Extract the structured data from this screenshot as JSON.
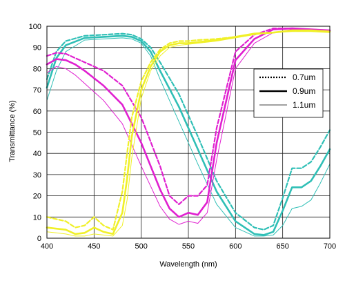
{
  "chart_data": {
    "type": "line",
    "title": "",
    "xlabel": "Wavelength (nm)",
    "ylabel": "Transmittance (%)",
    "xlim": [
      400,
      700
    ],
    "ylim": [
      0,
      100
    ],
    "xticks": [
      400,
      450,
      500,
      550,
      600,
      650,
      700
    ],
    "yticks": [
      0,
      10,
      20,
      30,
      40,
      50,
      60,
      70,
      80,
      90,
      100
    ],
    "grid": true,
    "legend_position": "right",
    "legend": [
      {
        "label": "0.7um",
        "dash": "dotted"
      },
      {
        "label": "0.9um",
        "dash": "solid-thick"
      },
      {
        "label": "1.1um",
        "dash": "solid-thin"
      }
    ],
    "colors": {
      "cyan": "#2fbfb6",
      "magenta": "#e020d0",
      "yellow": "#f0f028"
    },
    "series": [
      {
        "color": "cyan",
        "thickness": "0.7um",
        "x": [
          400,
          410,
          420,
          440,
          460,
          480,
          490,
          500,
          510,
          520,
          540,
          560,
          580,
          600,
          620,
          630,
          640,
          650,
          660,
          670,
          680,
          690,
          700
        ],
        "y": [
          75,
          88,
          93,
          95.5,
          96,
          96.5,
          96,
          94,
          90,
          83,
          68,
          48,
          27,
          12,
          5,
          4,
          6,
          19,
          33,
          33,
          36,
          43,
          51
        ]
      },
      {
        "color": "cyan",
        "thickness": "0.9um",
        "x": [
          400,
          410,
          420,
          440,
          460,
          480,
          490,
          500,
          510,
          520,
          540,
          560,
          580,
          600,
          620,
          630,
          640,
          650,
          660,
          670,
          680,
          690,
          700
        ],
        "y": [
          71,
          85,
          91,
          94.5,
          95,
          95.5,
          95,
          93,
          88,
          79,
          62,
          42,
          22,
          8,
          2,
          1.5,
          3,
          13,
          24,
          24,
          27,
          34,
          42
        ]
      },
      {
        "color": "cyan",
        "thickness": "1.1um",
        "x": [
          400,
          410,
          420,
          440,
          460,
          480,
          490,
          500,
          510,
          520,
          540,
          560,
          580,
          600,
          620,
          630,
          640,
          650,
          660,
          670,
          680,
          690,
          700
        ],
        "y": [
          65,
          79,
          88,
          93.5,
          94,
          94.5,
          94,
          92,
          86,
          75,
          55,
          35,
          16,
          5,
          1,
          1,
          1.5,
          6,
          14,
          15,
          18,
          26,
          35
        ]
      },
      {
        "color": "magenta",
        "thickness": "0.7um",
        "x": [
          400,
          410,
          420,
          430,
          440,
          460,
          480,
          500,
          520,
          530,
          540,
          550,
          560,
          570,
          580,
          600,
          620,
          640,
          660,
          680,
          700
        ],
        "y": [
          86,
          87.5,
          87,
          85,
          83,
          79,
          72,
          57,
          34,
          20,
          16,
          20,
          20,
          25,
          52,
          88,
          96,
          99,
          99,
          98.5,
          98
        ]
      },
      {
        "color": "magenta",
        "thickness": "0.9um",
        "x": [
          400,
          410,
          420,
          430,
          440,
          460,
          480,
          500,
          520,
          530,
          540,
          550,
          560,
          570,
          580,
          600,
          620,
          640,
          660,
          680,
          700
        ],
        "y": [
          82,
          84.5,
          84,
          82,
          79,
          72,
          63,
          45,
          23,
          14,
          10,
          12,
          11,
          17,
          45,
          84,
          94,
          98.5,
          99,
          98.5,
          98
        ]
      },
      {
        "color": "magenta",
        "thickness": "1.1um",
        "x": [
          400,
          410,
          420,
          430,
          440,
          460,
          480,
          500,
          520,
          530,
          540,
          550,
          560,
          570,
          580,
          600,
          620,
          640,
          660,
          680,
          700
        ],
        "y": [
          78,
          81,
          80,
          77,
          73,
          65,
          54,
          34,
          15,
          9,
          6.5,
          8,
          7,
          12,
          37,
          80,
          92,
          97,
          98.5,
          98,
          97.5
        ]
      },
      {
        "color": "yellow",
        "thickness": "0.7um",
        "x": [
          400,
          410,
          420,
          430,
          440,
          450,
          460,
          470,
          480,
          485,
          490,
          500,
          510,
          520,
          530,
          540,
          550,
          560,
          580,
          600,
          620,
          640,
          660,
          680,
          700
        ],
        "y": [
          10,
          9,
          8,
          5,
          6,
          10,
          6,
          4,
          22,
          40,
          57,
          74,
          83,
          89,
          92,
          93,
          93,
          93.5,
          94,
          95,
          96.5,
          97,
          98,
          98,
          97.5
        ]
      },
      {
        "color": "yellow",
        "thickness": "0.9um",
        "x": [
          400,
          410,
          420,
          430,
          440,
          450,
          460,
          470,
          480,
          485,
          490,
          500,
          510,
          520,
          530,
          540,
          550,
          560,
          580,
          600,
          620,
          640,
          660,
          680,
          700
        ],
        "y": [
          5,
          4.5,
          4,
          2,
          2.5,
          5,
          3,
          2,
          12,
          28,
          48,
          70,
          81,
          88,
          91,
          92,
          92,
          92.5,
          93.5,
          95,
          96.5,
          97,
          98,
          98,
          97.5
        ]
      },
      {
        "color": "yellow",
        "thickness": "1.1um",
        "x": [
          400,
          410,
          420,
          430,
          440,
          450,
          460,
          470,
          480,
          485,
          490,
          500,
          510,
          520,
          530,
          540,
          550,
          560,
          580,
          600,
          620,
          640,
          660,
          680,
          700
        ],
        "y": [
          3,
          2.5,
          2,
          1,
          1,
          2,
          1.5,
          1,
          6,
          18,
          38,
          66,
          79,
          86,
          90,
          91,
          91.5,
          92,
          93,
          94.5,
          96,
          97,
          97.5,
          97.5,
          97
        ]
      }
    ]
  }
}
